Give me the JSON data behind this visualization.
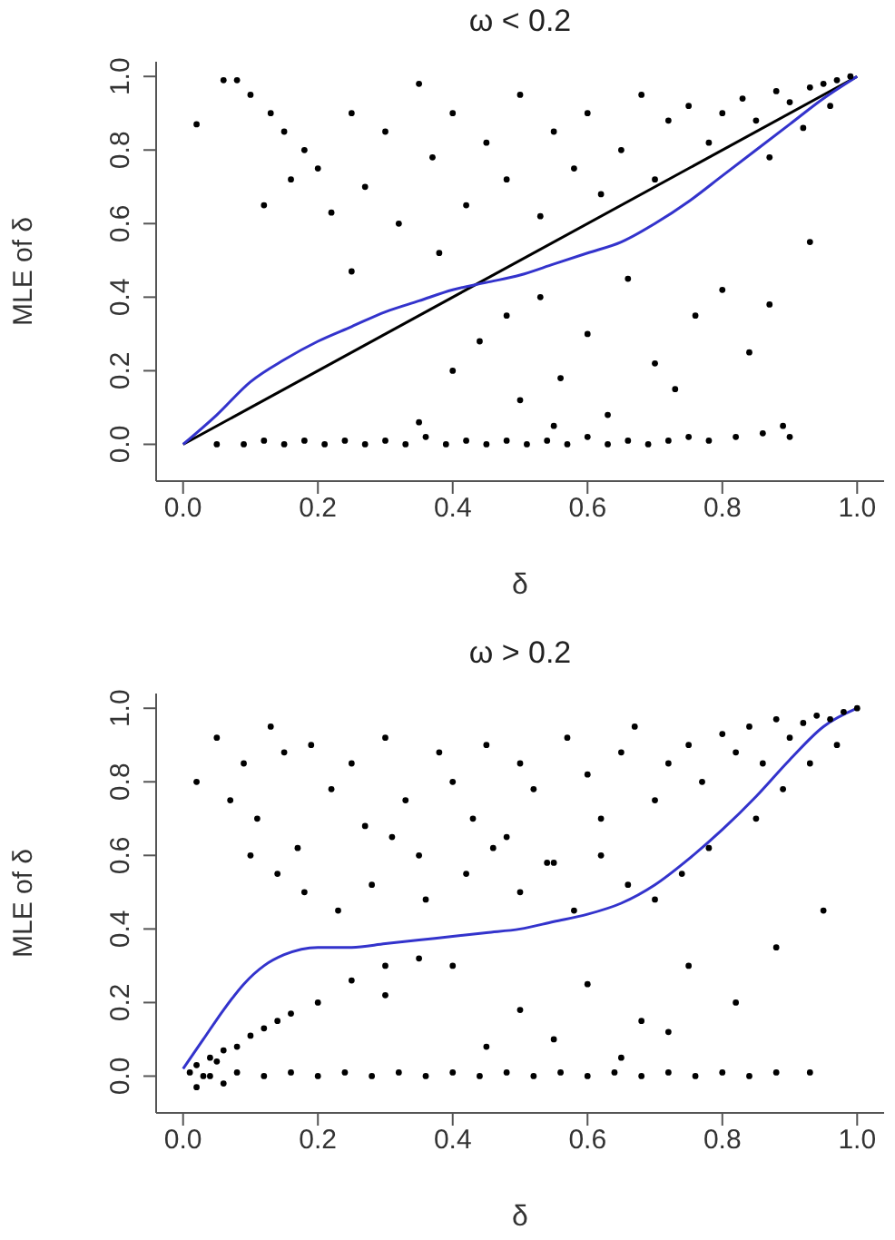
{
  "chart_data": [
    {
      "type": "scatter",
      "title": "ω < 0.2",
      "xlabel": "δ",
      "ylabel": "MLE of δ",
      "xlim": [
        -0.04,
        1.04
      ],
      "ylim": [
        -0.1,
        1.04
      ],
      "xticks": [
        {
          "value": 0,
          "label": "0.0"
        },
        {
          "value": 0.2,
          "label": "0.2"
        },
        {
          "value": 0.4,
          "label": "0.4"
        },
        {
          "value": 0.6,
          "label": "0.6"
        },
        {
          "value": 0.8,
          "label": "0.8"
        },
        {
          "value": 1,
          "label": "1.0"
        }
      ],
      "yticks": [
        {
          "value": 0,
          "label": "0.0"
        },
        {
          "value": 0.2,
          "label": "0.2"
        },
        {
          "value": 0.4,
          "label": "0.4"
        },
        {
          "value": 0.6,
          "label": "0.6"
        },
        {
          "value": 0.8,
          "label": "0.8"
        },
        {
          "value": 1,
          "label": "1.0"
        }
      ],
      "series": [
        {
          "marker": "circle",
          "color": "#000000",
          "x": [
            0.05,
            0.09,
            0.12,
            0.15,
            0.18,
            0.21,
            0.24,
            0.27,
            0.3,
            0.33,
            0.36,
            0.39,
            0.42,
            0.45,
            0.48,
            0.51,
            0.54,
            0.57,
            0.6,
            0.63,
            0.66,
            0.69,
            0.72,
            0.75,
            0.78,
            0.82,
            0.86,
            0.9,
            0.06,
            0.08,
            0.1,
            0.13,
            0.15,
            0.18,
            0.2,
            0.12,
            0.16,
            0.22,
            0.25,
            0.27,
            0.3,
            0.32,
            0.35,
            0.37,
            0.4,
            0.42,
            0.45,
            0.48,
            0.5,
            0.53,
            0.55,
            0.58,
            0.6,
            0.62,
            0.65,
            0.68,
            0.7,
            0.72,
            0.75,
            0.78,
            0.8,
            0.83,
            0.85,
            0.88,
            0.9,
            0.93,
            0.95,
            0.97,
            0.99,
            0.96,
            0.92,
            0.87,
            0.02,
            0.25,
            0.38,
            0.4,
            0.44,
            0.48,
            0.5,
            0.53,
            0.56,
            0.6,
            0.63,
            0.66,
            0.7,
            0.73,
            0.76,
            0.8,
            0.84,
            0.87,
            0.89,
            0.93,
            0.55,
            0.35
          ],
          "values": [
            0.0,
            0.0,
            0.01,
            0.0,
            0.01,
            0.0,
            0.01,
            0.0,
            0.01,
            0.0,
            0.02,
            0.0,
            0.01,
            0.0,
            0.01,
            0.0,
            0.01,
            0.0,
            0.02,
            0.0,
            0.01,
            0.0,
            0.01,
            0.02,
            0.01,
            0.02,
            0.03,
            0.02,
            0.99,
            0.99,
            0.95,
            0.9,
            0.85,
            0.8,
            0.75,
            0.65,
            0.72,
            0.63,
            0.9,
            0.7,
            0.85,
            0.6,
            0.98,
            0.78,
            0.9,
            0.65,
            0.82,
            0.72,
            0.95,
            0.62,
            0.85,
            0.75,
            0.9,
            0.68,
            0.8,
            0.95,
            0.72,
            0.88,
            0.92,
            0.82,
            0.9,
            0.94,
            0.88,
            0.96,
            0.93,
            0.97,
            0.98,
            0.99,
            1.0,
            0.92,
            0.86,
            0.78,
            0.87,
            0.47,
            0.52,
            0.2,
            0.28,
            0.35,
            0.12,
            0.4,
            0.18,
            0.3,
            0.08,
            0.45,
            0.22,
            0.15,
            0.35,
            0.42,
            0.25,
            0.38,
            0.05,
            0.55,
            0.05,
            0.06
          ]
        },
        {
          "type": "line",
          "marker": "none",
          "color": "#000000",
          "x": [
            0,
            1
          ],
          "values": [
            0,
            1
          ]
        },
        {
          "type": "line",
          "marker": "none",
          "color": "#3333cc",
          "x": [
            0,
            0.05,
            0.1,
            0.15,
            0.2,
            0.25,
            0.3,
            0.35,
            0.4,
            0.45,
            0.5,
            0.55,
            0.6,
            0.65,
            0.7,
            0.75,
            0.8,
            0.85,
            0.9,
            0.95,
            1
          ],
          "values": [
            0,
            0.08,
            0.17,
            0.23,
            0.28,
            0.32,
            0.36,
            0.39,
            0.42,
            0.44,
            0.46,
            0.49,
            0.52,
            0.55,
            0.6,
            0.66,
            0.73,
            0.8,
            0.87,
            0.94,
            1
          ]
        }
      ]
    },
    {
      "type": "scatter",
      "title": "ω > 0.2",
      "xlabel": "δ",
      "ylabel": "MLE of δ",
      "xlim": [
        -0.04,
        1.04
      ],
      "ylim": [
        -0.1,
        1.04
      ],
      "xticks": [
        {
          "value": 0,
          "label": "0.0"
        },
        {
          "value": 0.2,
          "label": "0.2"
        },
        {
          "value": 0.4,
          "label": "0.4"
        },
        {
          "value": 0.6,
          "label": "0.6"
        },
        {
          "value": 0.8,
          "label": "0.8"
        },
        {
          "value": 1,
          "label": "1.0"
        }
      ],
      "yticks": [
        {
          "value": 0,
          "label": "0.0"
        },
        {
          "value": 0.2,
          "label": "0.2"
        },
        {
          "value": 0.4,
          "label": "0.4"
        },
        {
          "value": 0.6,
          "label": "0.6"
        },
        {
          "value": 0.8,
          "label": "0.8"
        },
        {
          "value": 1,
          "label": "1.0"
        }
      ],
      "series": [
        {
          "marker": "circle",
          "color": "#000000",
          "x": [
            0.04,
            0.08,
            0.12,
            0.16,
            0.2,
            0.24,
            0.28,
            0.32,
            0.36,
            0.4,
            0.44,
            0.48,
            0.52,
            0.56,
            0.6,
            0.64,
            0.68,
            0.72,
            0.76,
            0.8,
            0.84,
            0.88,
            0.93,
            0.01,
            0.02,
            0.03,
            0.04,
            0.05,
            0.06,
            0.08,
            0.1,
            0.12,
            0.14,
            0.16,
            0.2,
            0.25,
            0.3,
            0.02,
            0.06,
            0.02,
            0.05,
            0.07,
            0.09,
            0.11,
            0.13,
            0.15,
            0.17,
            0.19,
            0.22,
            0.25,
            0.27,
            0.3,
            0.33,
            0.35,
            0.38,
            0.4,
            0.43,
            0.45,
            0.48,
            0.5,
            0.52,
            0.55,
            0.57,
            0.6,
            0.62,
            0.65,
            0.67,
            0.7,
            0.72,
            0.75,
            0.77,
            0.8,
            0.82,
            0.84,
            0.86,
            0.88,
            0.9,
            0.92,
            0.94,
            0.96,
            0.98,
            1.0,
            0.97,
            0.93,
            0.89,
            0.85,
            0.1,
            0.14,
            0.18,
            0.23,
            0.28,
            0.31,
            0.36,
            0.42,
            0.46,
            0.5,
            0.54,
            0.58,
            0.62,
            0.66,
            0.7,
            0.74,
            0.78,
            0.3,
            0.4,
            0.5,
            0.6,
            0.68,
            0.75,
            0.82,
            0.88,
            0.95,
            0.45,
            0.55,
            0.65,
            0.72,
            0.35
          ],
          "values": [
            0.0,
            0.01,
            0.0,
            0.01,
            0.0,
            0.01,
            0.0,
            0.01,
            0.0,
            0.01,
            0.0,
            0.01,
            0.0,
            0.01,
            0.0,
            0.01,
            0.0,
            0.01,
            0.0,
            0.01,
            0.0,
            0.01,
            0.01,
            0.01,
            0.03,
            0.0,
            0.05,
            0.04,
            0.07,
            0.08,
            0.11,
            0.13,
            0.15,
            0.17,
            0.2,
            0.26,
            0.3,
            -0.03,
            -0.02,
            0.8,
            0.92,
            0.75,
            0.85,
            0.7,
            0.95,
            0.88,
            0.62,
            0.9,
            0.78,
            0.85,
            0.68,
            0.92,
            0.75,
            0.6,
            0.88,
            0.8,
            0.7,
            0.9,
            0.65,
            0.85,
            0.78,
            0.58,
            0.92,
            0.82,
            0.7,
            0.88,
            0.95,
            0.75,
            0.85,
            0.9,
            0.8,
            0.93,
            0.88,
            0.95,
            0.85,
            0.97,
            0.92,
            0.96,
            0.98,
            0.97,
            0.99,
            1.0,
            0.9,
            0.85,
            0.78,
            0.7,
            0.6,
            0.55,
            0.5,
            0.45,
            0.52,
            0.65,
            0.48,
            0.55,
            0.62,
            0.5,
            0.58,
            0.45,
            0.6,
            0.52,
            0.48,
            0.55,
            0.62,
            0.22,
            0.3,
            0.18,
            0.25,
            0.15,
            0.3,
            0.2,
            0.35,
            0.45,
            0.08,
            0.1,
            0.05,
            0.12,
            0.32
          ]
        },
        {
          "type": "line",
          "marker": "none",
          "color": "#3333cc",
          "x": [
            0,
            0.03,
            0.06,
            0.09,
            0.12,
            0.15,
            0.2,
            0.25,
            0.3,
            0.35,
            0.4,
            0.45,
            0.5,
            0.55,
            0.6,
            0.65,
            0.7,
            0.75,
            0.8,
            0.85,
            0.9,
            0.95,
            1
          ],
          "values": [
            0.02,
            0.1,
            0.18,
            0.25,
            0.3,
            0.33,
            0.35,
            0.35,
            0.36,
            0.37,
            0.38,
            0.39,
            0.4,
            0.42,
            0.44,
            0.47,
            0.52,
            0.59,
            0.67,
            0.76,
            0.86,
            0.95,
            1
          ]
        }
      ]
    }
  ]
}
